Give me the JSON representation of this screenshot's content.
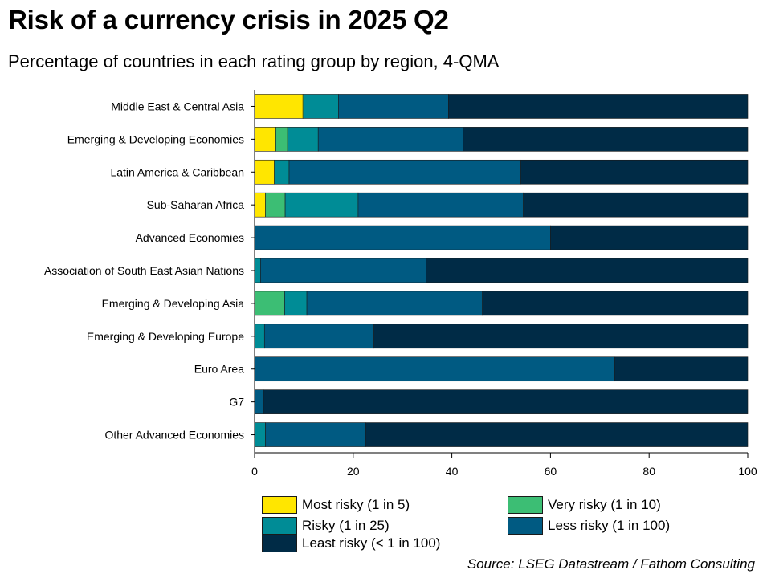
{
  "header": {
    "title": "Risk of a currency crisis in 2025 Q2",
    "subtitle": "Percentage of countries in each rating group by region, 4-QMA"
  },
  "footer": {
    "source": "Source: LSEG Datastream / Fathom Consulting"
  },
  "colors": {
    "most_risky": "#FFE600",
    "very_risky": "#3CBE74",
    "risky": "#008C96",
    "less_risky": "#005A82",
    "least_risky": "#002B46"
  },
  "chart_data": {
    "type": "bar",
    "orientation": "horizontal",
    "stacked": true,
    "categories": [
      "Middle East & Central Asia",
      "Emerging & Developing Economies",
      "Latin America & Caribbean",
      "Sub-Saharan Africa",
      "Advanced Economies",
      "Association of South East Asian Nations",
      "Emerging & Developing Asia",
      "Emerging & Developing Europe",
      "Euro Area",
      "G7",
      "Other Advanced Economies"
    ],
    "series": [
      {
        "name": "Most risky (1 in 5)",
        "color_key": "most_risky",
        "values": [
          9.8,
          4.3,
          4.0,
          2.2,
          0,
          0,
          0,
          0,
          0,
          0,
          0
        ]
      },
      {
        "name": "Very risky (1 in 10)",
        "color_key": "very_risky",
        "values": [
          0.2,
          2.4,
          0,
          4.0,
          0,
          0,
          6.1,
          0,
          0,
          0,
          0
        ]
      },
      {
        "name": "Risky (1 in 25)",
        "color_key": "risky",
        "values": [
          7.0,
          6.2,
          3.0,
          14.8,
          0,
          1.2,
          4.5,
          2.0,
          0,
          0,
          2.2
        ]
      },
      {
        "name": "Less risky (1 in 100)",
        "color_key": "less_risky",
        "values": [
          22.3,
          29.4,
          47.0,
          33.5,
          60.0,
          33.6,
          35.6,
          22.2,
          73.0,
          1.8,
          20.3
        ]
      },
      {
        "name": "Least risky (< 1 in 100)",
        "color_key": "least_risky",
        "values": [
          60.7,
          57.7,
          46.0,
          45.5,
          40.0,
          65.2,
          53.8,
          75.8,
          27.0,
          98.2,
          77.5
        ]
      }
    ],
    "x_ticks": [
      "0",
      "20",
      "40",
      "60",
      "80",
      "100"
    ],
    "xlim": [
      0,
      100
    ],
    "legend_position": "bottom",
    "grid": false
  }
}
